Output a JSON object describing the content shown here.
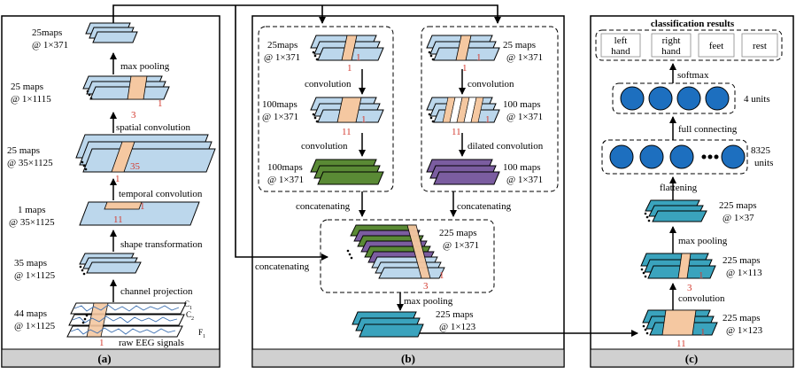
{
  "panel_a": {
    "caption": "(a)",
    "blocks": {
      "pool_out": {
        "maps": "25maps",
        "dims": "@ 1×371"
      },
      "spatial_out": {
        "maps": "25 maps",
        "dims": "@ 1×1115"
      },
      "temporal_out": {
        "maps": "25 maps",
        "dims": "@ 35×1125"
      },
      "shape_out": {
        "maps": "1 maps",
        "dims": "@ 35×1125"
      },
      "channel_out": {
        "maps": "35 maps",
        "dims": "@ 1×1125"
      },
      "input": {
        "maps": "44 maps",
        "dims": "@ 1×1125"
      }
    },
    "ops": {
      "max_pooling": "max pooling",
      "spatial_conv": "spatial convolution",
      "temporal_conv": "temporal convolution",
      "shape_transform": "shape transformation",
      "channel_proj": "channel projection",
      "raw_eeg": "raw EEG signals"
    },
    "kernels": {
      "k1": "1",
      "k3": "3",
      "k35": "35",
      "k11": "11"
    },
    "channels": {
      "c1": "C",
      "c1_sub": "1",
      "c2": "C",
      "c2_sub": "2",
      "f1": "F",
      "f1_sub": "1"
    }
  },
  "panel_b": {
    "caption": "(b)",
    "left_branch": {
      "in": {
        "maps": "25maps",
        "dims": "@ 1×371"
      },
      "mid": {
        "maps": "100maps",
        "dims": "@ 1×371"
      },
      "out": {
        "maps": "100maps",
        "dims": "@ 1×371"
      },
      "op1": "convolution",
      "op2": "convolution"
    },
    "right_branch": {
      "in": {
        "maps": "25 maps",
        "dims": "@ 1×371"
      },
      "mid": {
        "maps": "100 maps",
        "dims": "@ 1×371"
      },
      "out": {
        "maps": "100 maps",
        "dims": "@ 1×371"
      },
      "op1": "convolution",
      "op2": "dilated convolution"
    },
    "concat_left": "concatenating",
    "concat_right": "concatenating",
    "concat_side": "concatenating",
    "concat_block": {
      "maps": "225 maps",
      "dims": "@ 1×371"
    },
    "max_pooling": "max pooling",
    "pool_out": {
      "maps": "225 maps",
      "dims": "@ 1×123"
    },
    "kernels": {
      "k1": "1",
      "k11": "11",
      "k3": "3"
    }
  },
  "panel_c": {
    "caption": "(c)",
    "title": "classification results",
    "classes": [
      [
        "left",
        "hand"
      ],
      [
        "right",
        "hand"
      ],
      [
        "feet"
      ],
      [
        "rest"
      ]
    ],
    "softmax": "softmax",
    "units4": "4 units",
    "full_connecting": "full connecting",
    "units8325": [
      "8325",
      "units"
    ],
    "flattening": "flattening",
    "block1": {
      "maps": "225 maps",
      "dims": "@ 1×37"
    },
    "max_pooling": "max pooling",
    "block2": {
      "maps": "225 maps",
      "dims": "@ 1×113"
    },
    "convolution": "convolution",
    "block3": {
      "maps": "225 maps",
      "dims": "@ 1×123"
    },
    "kernels": {
      "k1": "1",
      "k3": "3",
      "k11": "11"
    }
  },
  "colors": {
    "light_blue": "#bcd7ec",
    "orange": "#f5c8a1",
    "green": "#5a8a35",
    "purple": "#7b5da0",
    "teal": "#3aa3bd",
    "node_blue": "#1d6fbf",
    "caption_gray": "#d0d0d0",
    "red_label": "#d43a2f"
  }
}
